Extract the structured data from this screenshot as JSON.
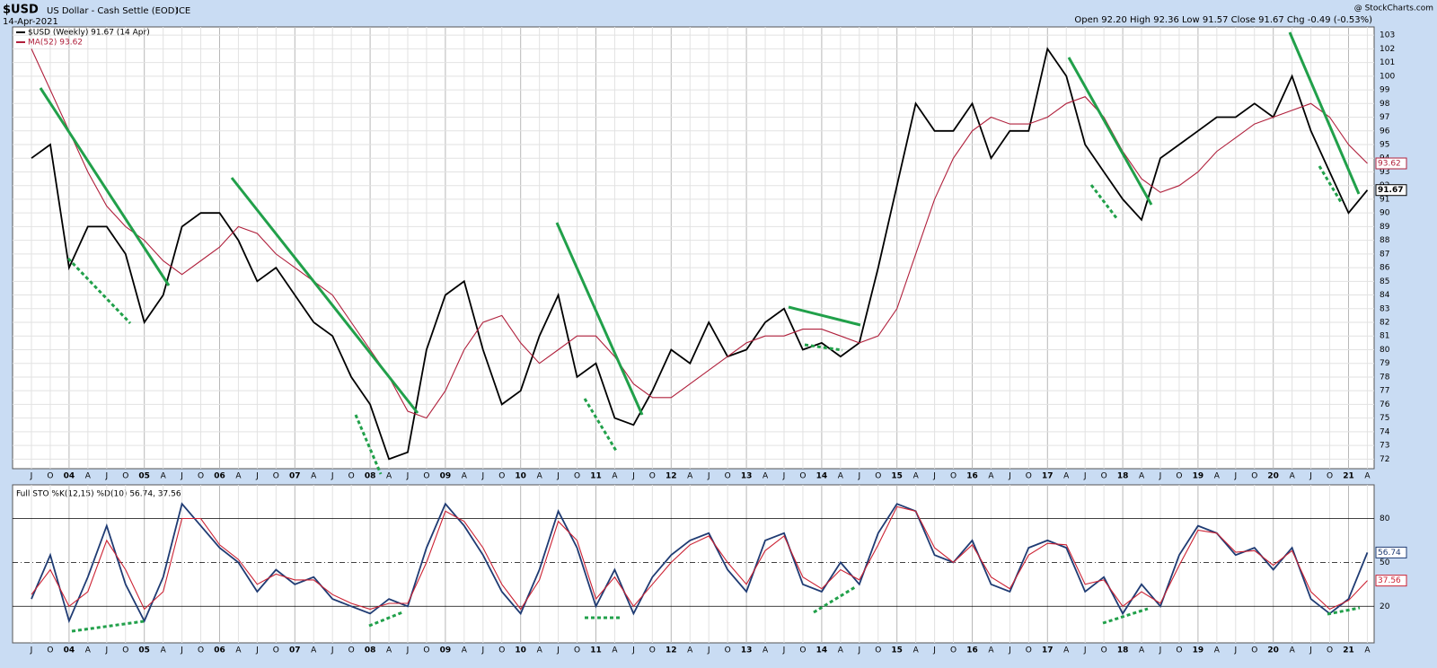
{
  "chart_data": [
    {
      "type": "line",
      "title": "$USD",
      "subtitle": "US Dollar - Cash Settle (EOD)",
      "source": "ICE",
      "date": "14-Apr-2021",
      "quote": "Open 92.20 High 92.36 Low 91.57 Close 91.67 Chg -0.49 (-0.53%)",
      "credit": "@ StockCharts.com",
      "categories": [
        "J",
        "O",
        "04",
        "A",
        "J",
        "O",
        "05",
        "A",
        "J",
        "O",
        "06",
        "A",
        "J",
        "O",
        "07",
        "A",
        "J",
        "O",
        "08",
        "A",
        "J",
        "O",
        "09",
        "A",
        "J",
        "O",
        "10",
        "A",
        "J",
        "O",
        "11",
        "A",
        "J",
        "O",
        "12",
        "A",
        "J",
        "O",
        "13",
        "A",
        "J",
        "O",
        "14",
        "A",
        "J",
        "O",
        "15",
        "A",
        "J",
        "O",
        "16",
        "A",
        "J",
        "O",
        "17",
        "A",
        "J",
        "O",
        "18",
        "A",
        "J",
        "O",
        "19",
        "A",
        "J",
        "O",
        "20",
        "A",
        "J",
        "O",
        "21",
        "A"
      ],
      "series": [
        {
          "name": "$USD (Weekly) 91.67 (14 Apr)",
          "color": "#000000",
          "values": [
            94,
            95,
            86,
            89,
            89,
            87,
            82,
            84,
            89,
            90,
            90,
            88,
            85,
            86,
            84,
            82,
            81,
            78,
            76,
            72,
            72.5,
            80,
            84,
            85,
            80,
            76,
            77,
            81,
            84,
            78,
            79,
            75,
            74.5,
            77,
            80,
            79,
            82,
            79.5,
            80,
            82,
            83,
            80,
            80.5,
            79.5,
            80.5,
            86,
            92,
            98,
            96,
            96,
            98,
            94,
            96,
            96,
            102,
            100,
            95,
            93,
            91,
            89.5,
            94,
            95,
            96,
            97,
            97,
            98,
            97,
            100,
            96,
            93,
            90,
            91.67
          ]
        },
        {
          "name": "MA(52) 93.62",
          "color": "#b0203c",
          "values": [
            102,
            99,
            96,
            93,
            90.5,
            89,
            88,
            86.5,
            85.5,
            86.5,
            87.5,
            89,
            88.5,
            87,
            86,
            85,
            84,
            82,
            80,
            78,
            75.5,
            75,
            77,
            80,
            82,
            82.5,
            80.5,
            79,
            80,
            81,
            81,
            79.5,
            77.5,
            76.5,
            76.5,
            77.5,
            78.5,
            79.5,
            80.5,
            81,
            81,
            81.5,
            81.5,
            81,
            80.5,
            81,
            83,
            87,
            91,
            94,
            96,
            97,
            96.5,
            96.5,
            97,
            98,
            98.5,
            97,
            94.5,
            92.5,
            91.5,
            92,
            93,
            94.5,
            95.5,
            96.5,
            97,
            97.5,
            98,
            97,
            95,
            93.62
          ]
        }
      ],
      "ylim": [
        71.3,
        103.6
      ],
      "yticks": [
        72,
        73,
        74,
        75,
        76,
        77,
        78,
        79,
        80,
        81,
        82,
        83,
        84,
        85,
        86,
        87,
        88,
        89,
        90,
        91,
        92,
        93,
        94,
        95,
        96,
        97,
        98,
        99,
        100,
        101,
        102,
        103
      ],
      "grid": true
    },
    {
      "type": "line",
      "title": "Full STO %K(12,15) %D(10) 56.74, 37.56",
      "categories": [
        "J",
        "O",
        "04",
        "A",
        "J",
        "O",
        "05",
        "A",
        "J",
        "O",
        "06",
        "A",
        "J",
        "O",
        "07",
        "A",
        "J",
        "O",
        "08",
        "A",
        "J",
        "O",
        "09",
        "A",
        "J",
        "O",
        "10",
        "A",
        "J",
        "O",
        "11",
        "A",
        "J",
        "O",
        "12",
        "A",
        "J",
        "O",
        "13",
        "A",
        "J",
        "O",
        "14",
        "A",
        "J",
        "O",
        "15",
        "A",
        "J",
        "O",
        "16",
        "A",
        "J",
        "O",
        "17",
        "A",
        "J",
        "O",
        "18",
        "A",
        "J",
        "O",
        "19",
        "A",
        "J",
        "O",
        "20",
        "A",
        "J",
        "O",
        "21",
        "A"
      ],
      "series": [
        {
          "color": "#1f3b73",
          "values": [
            25,
            55,
            10,
            40,
            75,
            35,
            10,
            40,
            90,
            75,
            60,
            50,
            30,
            45,
            35,
            40,
            25,
            20,
            15,
            25,
            20,
            60,
            90,
            75,
            55,
            30,
            15,
            45,
            85,
            60,
            20,
            45,
            15,
            40,
            55,
            65,
            70,
            45,
            30,
            65,
            70,
            35,
            30,
            50,
            35,
            70,
            90,
            85,
            55,
            50,
            65,
            35,
            30,
            60,
            65,
            60,
            30,
            40,
            15,
            35,
            20,
            55,
            75,
            70,
            55,
            60,
            45,
            60,
            25,
            15,
            25,
            56.74
          ]
        },
        {
          "color": "#cc2233",
          "values": [
            28,
            45,
            20,
            30,
            65,
            45,
            18,
            30,
            80,
            80,
            62,
            52,
            35,
            42,
            38,
            38,
            28,
            22,
            18,
            22,
            22,
            50,
            85,
            78,
            60,
            35,
            18,
            38,
            78,
            65,
            25,
            40,
            20,
            35,
            50,
            62,
            68,
            50,
            35,
            58,
            68,
            40,
            32,
            45,
            38,
            62,
            88,
            85,
            60,
            50,
            62,
            40,
            32,
            55,
            63,
            62,
            35,
            38,
            20,
            30,
            22,
            48,
            72,
            70,
            57,
            58,
            48,
            58,
            30,
            18,
            24,
            37.56
          ]
        }
      ],
      "ylim": [
        -5,
        103
      ],
      "yticks": [
        20,
        50,
        80
      ],
      "grid": true
    }
  ]
}
